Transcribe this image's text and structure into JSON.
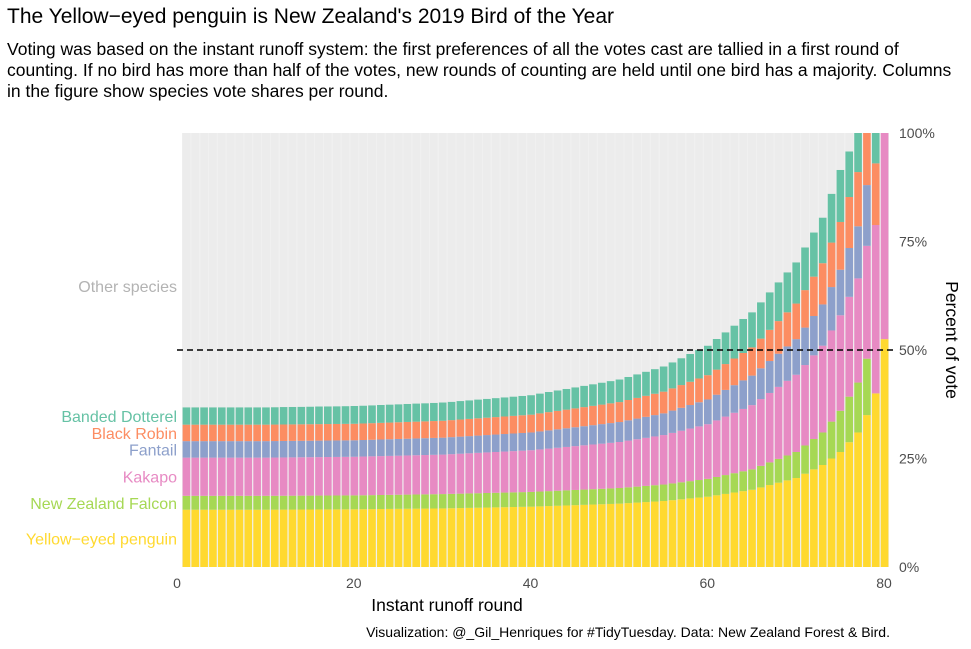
{
  "title": "The Yellow−eyed penguin is New Zealand's 2019 Bird of the Year",
  "subtitle": "Voting was based on the instant runoff system: the first preferences of all the votes cast are tallied in a first round of counting. If no bird has more than half of the votes, new rounds of counting are held until one bird has a majority. Columns in the figure show species vote shares per round.",
  "caption": "Visualization: @_Gil_Henriques for #TidyTuesday. Data: New Zealand Forest & Bird.",
  "chart_data": {
    "type": "bar",
    "stacked": true,
    "percent": true,
    "x_label": "Instant runoff round",
    "y_label": "Percent of vote",
    "xlim": [
      0,
      80
    ],
    "x_ticks": [
      0,
      20,
      40,
      60,
      80
    ],
    "ylim": [
      0,
      100
    ],
    "y_ticks": [
      "0%",
      "25%",
      "50%",
      "75%",
      "100%"
    ],
    "y_axis_position": "right",
    "majority_line": 50,
    "background_series": "Other species",
    "rounds": 80,
    "anchor_rounds": [
      1,
      10,
      20,
      30,
      40,
      50,
      55,
      60,
      65,
      70,
      73,
      75,
      77,
      78,
      79,
      80
    ],
    "series": [
      {
        "name": "Yellow−eyed penguin",
        "color": "#FFD92F",
        "values": [
          13.2,
          13.2,
          13.3,
          13.5,
          13.9,
          14.6,
          15.2,
          16.2,
          17.8,
          20.5,
          23.5,
          26.5,
          31,
          35,
          40,
          52.5
        ]
      },
      {
        "name": "New Zealand Falcon",
        "color": "#A6D854",
        "values": [
          3.2,
          3.2,
          3.2,
          3.3,
          3.4,
          3.6,
          3.8,
          4.1,
          4.7,
          6,
          7.5,
          9.5,
          11.5,
          13,
          0,
          0
        ]
      },
      {
        "name": "Kakapo",
        "color": "#E78AC3",
        "values": [
          8.8,
          8.8,
          8.9,
          9.1,
          9.6,
          10.6,
          11.4,
          12.6,
          14.8,
          17.8,
          20,
          22,
          24,
          26,
          38.8,
          47.5
        ]
      },
      {
        "name": "Fantail",
        "color": "#8DA0CB",
        "values": [
          3.8,
          3.8,
          3.8,
          3.9,
          4.1,
          4.6,
          5,
          5.7,
          6.8,
          8.2,
          9.5,
          10.5,
          12,
          14,
          0,
          0
        ]
      },
      {
        "name": "Black Robin",
        "color": "#FC8D62",
        "values": [
          3.8,
          3.8,
          3.8,
          3.9,
          4.1,
          4.6,
          5,
          5.6,
          6.5,
          8.2,
          9.5,
          11,
          12.5,
          12,
          14.2,
          0
        ]
      },
      {
        "name": "Banded Dotterel",
        "color": "#66C2A5",
        "values": [
          4,
          4,
          4.1,
          4.2,
          4.5,
          5.2,
          5.8,
          6.8,
          8.1,
          9.5,
          10.5,
          12,
          9,
          0,
          7,
          0
        ]
      }
    ]
  }
}
